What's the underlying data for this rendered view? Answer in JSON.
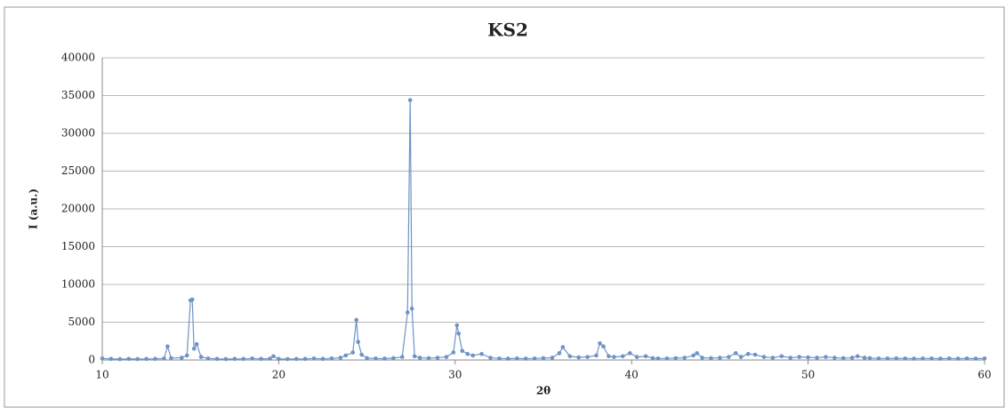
{
  "chart_data": {
    "type": "line",
    "title": "KS2",
    "x_label": "2θ",
    "y_label": "I (a.u.)",
    "x": [
      10,
      10.5,
      11,
      11.5,
      12,
      12.5,
      13,
      13.5,
      13.7,
      13.9,
      14.5,
      14.8,
      15.0,
      15.1,
      15.2,
      15.35,
      15.6,
      16,
      16.5,
      17,
      17.5,
      18,
      18.5,
      19,
      19.5,
      19.7,
      20,
      20.5,
      21,
      21.5,
      22,
      22.5,
      23,
      23.5,
      23.8,
      24.2,
      24.4,
      24.5,
      24.7,
      25,
      25.5,
      26,
      26.5,
      27,
      27.3,
      27.45,
      27.55,
      27.7,
      28,
      28.5,
      29,
      29.5,
      29.9,
      30.1,
      30.2,
      30.4,
      30.7,
      31,
      31.5,
      32,
      32.5,
      33,
      33.5,
      34,
      34.5,
      35,
      35.5,
      35.9,
      36.1,
      36.5,
      37,
      37.5,
      38,
      38.2,
      38.4,
      38.7,
      39,
      39.5,
      39.9,
      40.3,
      40.8,
      41.2,
      41.5,
      42,
      42.5,
      43,
      43.5,
      43.7,
      44,
      44.5,
      45,
      45.5,
      45.9,
      46.2,
      46.6,
      47,
      47.5,
      48,
      48.5,
      49,
      49.5,
      50,
      50.5,
      51,
      51.5,
      52,
      52.5,
      52.8,
      53.2,
      53.5,
      54,
      54.5,
      55,
      55.5,
      56,
      56.5,
      57,
      57.5,
      58,
      58.5,
      59,
      59.5,
      60
    ],
    "series": [
      {
        "name": "KS2",
        "color": "#6d93c7",
        "values": [
          200,
          150,
          120,
          150,
          130,
          140,
          150,
          200,
          1800,
          250,
          300,
          600,
          7900,
          8000,
          1500,
          2100,
          400,
          200,
          150,
          130,
          150,
          140,
          200,
          150,
          180,
          500,
          150,
          130,
          140,
          150,
          200,
          150,
          200,
          300,
          600,
          1000,
          5300,
          2400,
          700,
          250,
          200,
          180,
          250,
          400,
          6300,
          34400,
          6800,
          500,
          300,
          250,
          300,
          400,
          1000,
          4600,
          3500,
          1200,
          800,
          600,
          800,
          300,
          200,
          180,
          200,
          180,
          200,
          250,
          300,
          900,
          1700,
          500,
          350,
          400,
          600,
          2200,
          1800,
          500,
          400,
          500,
          900,
          400,
          500,
          250,
          200,
          200,
          250,
          300,
          600,
          900,
          300,
          250,
          300,
          400,
          900,
          400,
          800,
          700,
          400,
          300,
          500,
          300,
          400,
          350,
          300,
          400,
          300,
          250,
          300,
          500,
          300,
          250,
          200,
          200,
          220,
          200,
          180,
          200,
          200,
          180,
          200,
          180,
          200,
          180,
          200
        ]
      }
    ],
    "xlim": [
      10,
      60
    ],
    "xticks": [
      10,
      20,
      30,
      40,
      50,
      60
    ],
    "ylim": [
      0,
      40000
    ],
    "yticks": [
      0,
      5000,
      10000,
      15000,
      20000,
      25000,
      30000,
      35000,
      40000
    ],
    "grid": true
  }
}
